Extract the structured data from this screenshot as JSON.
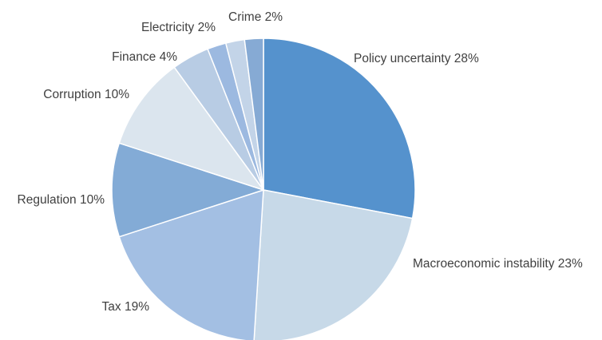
{
  "chart_data": {
    "type": "pie",
    "title": "",
    "slices": [
      {
        "label": "Policy uncertainty 28%",
        "value": 28,
        "color": "#5592cd"
      },
      {
        "label": "Macroeconomic instability 23%",
        "value": 23,
        "color": "#c7d9e8"
      },
      {
        "label": "Tax 19%",
        "value": 19,
        "color": "#a3bfe3"
      },
      {
        "label": "Regulation 10%",
        "value": 10,
        "color": "#83abd6"
      },
      {
        "label": "Corruption 10%",
        "value": 10,
        "color": "#dbe5ee"
      },
      {
        "label": "Finance 4%",
        "value": 4,
        "color": "#b8cce4"
      },
      {
        "label": "Electricity 2%",
        "value": 2,
        "color": "#9cb9e0"
      },
      {
        "label": "",
        "value": 2,
        "color": "#c3d4e8"
      },
      {
        "label": "Crime 2%",
        "value": 2,
        "color": "#86aad4"
      }
    ],
    "legend": "none",
    "start": "12 o'clock, clockwise"
  }
}
